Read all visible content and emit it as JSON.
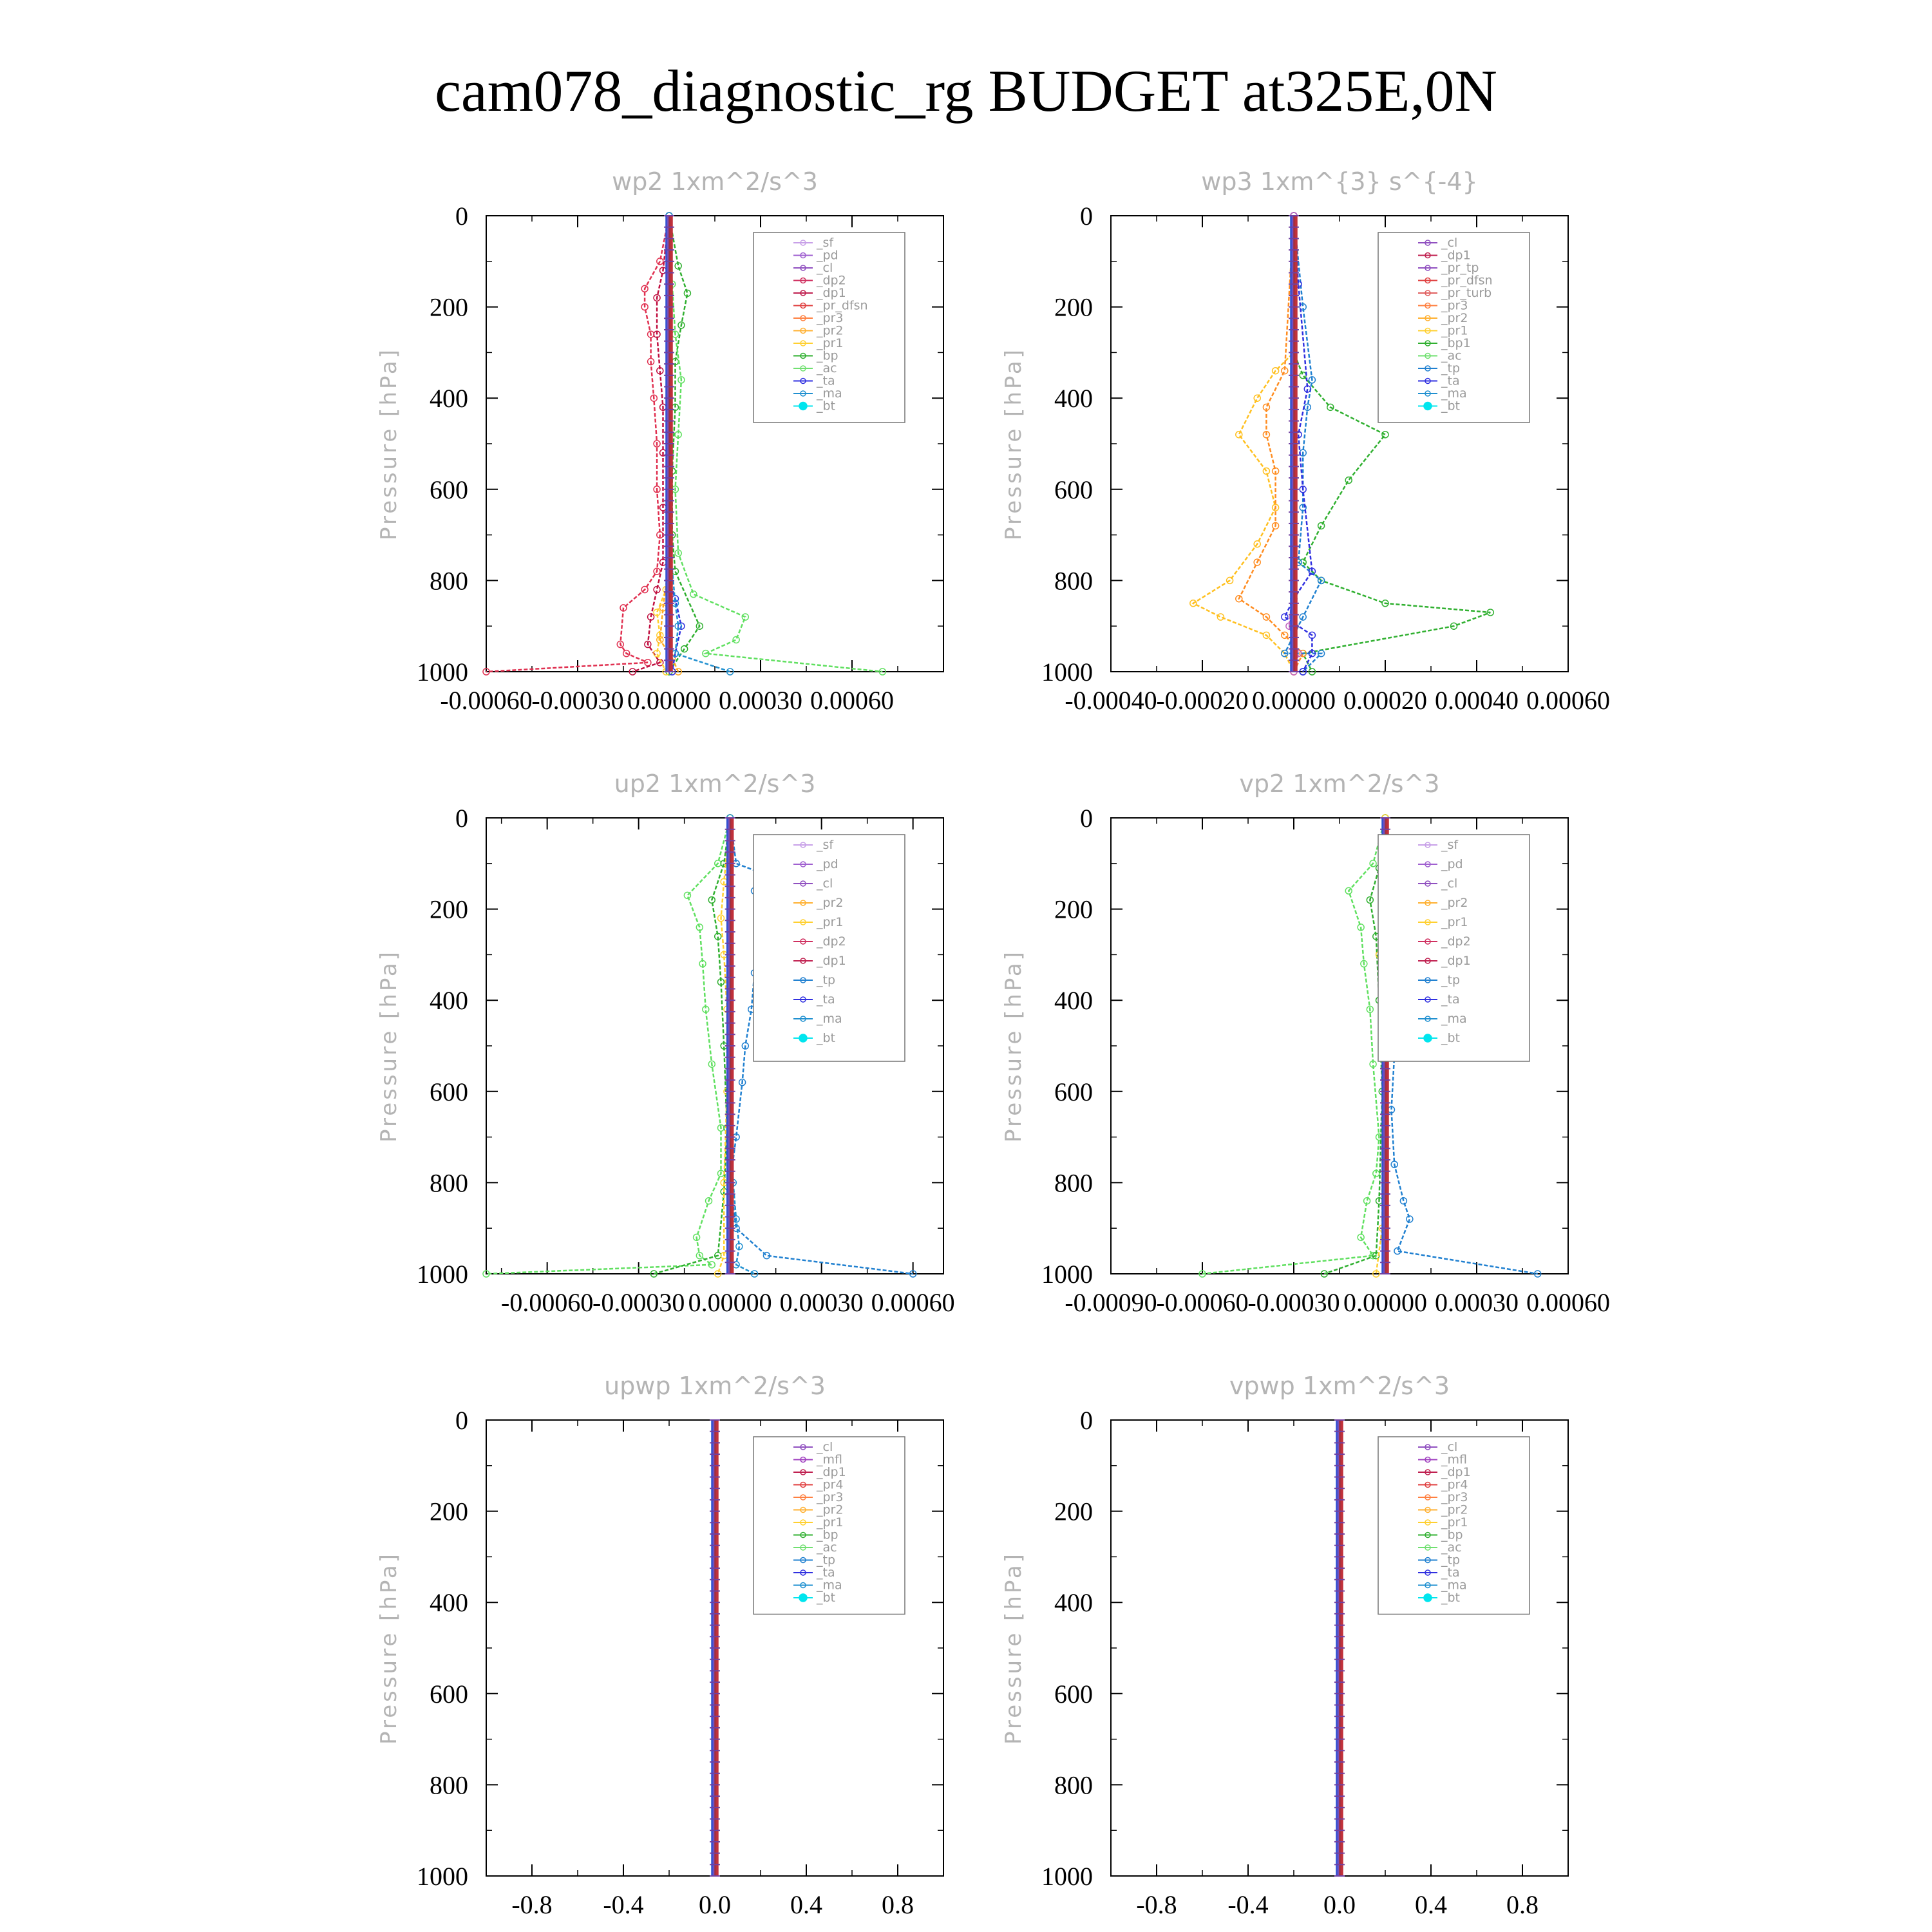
{
  "figure_title": "cam078_diagnostic_rg  BUDGET at325E,0N",
  "y_axis_label": "Pressure [hPa]",
  "chart_data": [
    {
      "type": "line",
      "title": "wp2   1xm^2/s^3",
      "ylabel": "Pressure [hPa]",
      "ylim": [
        1000,
        0
      ],
      "xlim": [
        -0.0006,
        0.0009
      ],
      "y_ticks": [
        "0",
        "200",
        "400",
        "600",
        "800",
        "1000"
      ],
      "x_ticks": [
        "-0.00060",
        "-0.00030",
        "0.00000",
        "0.00030",
        "0.00060"
      ],
      "x_tick_values": [
        -0.0006,
        -0.0003,
        0.0,
        0.0003,
        0.0006
      ],
      "legend": [
        "_sf",
        "_pd",
        "_cl",
        "_dp2",
        "_dp1",
        "_pr_dfsn",
        "_pr3",
        "_pr2",
        "_pr1",
        "_bp",
        "_ac",
        "_ta",
        "_ma",
        "_bt"
      ],
      "series": [
        {
          "name": "_dp2",
          "color": "#e03050",
          "x": [
            0,
            -3e-05,
            -8e-05,
            -8e-05,
            -6e-05,
            -6e-05,
            -5e-05,
            -4e-05,
            -4e-05,
            -3e-05,
            -4e-05,
            -8e-05,
            -0.00015,
            -0.00016,
            -0.00014,
            -7e-05,
            -0.0006
          ],
          "y": [
            0,
            100,
            160,
            200,
            260,
            320,
            400,
            500,
            600,
            700,
            780,
            820,
            860,
            940,
            960,
            980,
            1000
          ]
        },
        {
          "name": "_dp1",
          "color": "#c01040",
          "x": [
            0,
            -2e-05,
            -4e-05,
            -4e-05,
            -3e-05,
            -2e-05,
            -2e-05,
            -2e-05,
            -2e-05,
            -4e-05,
            -6e-05,
            -7e-05,
            -3e-05,
            -0.00012
          ],
          "y": [
            0,
            120,
            180,
            260,
            340,
            420,
            520,
            640,
            760,
            820,
            880,
            940,
            980,
            1000
          ]
        },
        {
          "name": "_bp",
          "color": "#30b030",
          "x": [
            0,
            3e-05,
            6e-05,
            4e-05,
            2e-05,
            2e-05,
            1e-05,
            1e-05,
            2e-05,
            0.0001,
            5e-05,
            0.0
          ],
          "y": [
            0,
            110,
            170,
            240,
            320,
            420,
            560,
            700,
            780,
            900,
            950,
            1000
          ]
        },
        {
          "name": "_ac",
          "color": "#60e060",
          "x": [
            0,
            1e-05,
            2e-05,
            4e-05,
            3e-05,
            2e-05,
            3e-05,
            8e-05,
            0.00025,
            0.00022,
            0.00012,
            0.0007
          ],
          "y": [
            0,
            150,
            260,
            360,
            480,
            600,
            740,
            830,
            880,
            930,
            960,
            1000
          ]
        },
        {
          "name": "_pr2",
          "color": "#ffd030",
          "x": [
            0,
            0,
            0,
            -1e-05,
            -4e-05,
            -3e-05,
            -4e-05,
            -1e-05
          ],
          "y": [
            0,
            400,
            700,
            820,
            870,
            920,
            960,
            1000
          ]
        },
        {
          "name": "_pr1",
          "color": "#ffaa20",
          "x": [
            0,
            0,
            0,
            -2e-05,
            -3e-05,
            1e-05,
            3e-05
          ],
          "y": [
            0,
            400,
            760,
            860,
            930,
            970,
            1000
          ]
        },
        {
          "name": "_ta",
          "color": "#3030e0",
          "x": [
            0,
            0,
            0,
            2e-05,
            4e-05,
            2e-05,
            1e-05
          ],
          "y": [
            0,
            400,
            800,
            840,
            900,
            960,
            1000
          ]
        },
        {
          "name": "_ma",
          "color": "#2090d0",
          "x": [
            0,
            0,
            2e-05,
            3e-05,
            2e-05,
            0.0002
          ],
          "y": [
            0,
            700,
            850,
            900,
            960,
            1000
          ]
        }
      ]
    },
    {
      "type": "line",
      "title": "wp3   1xm^{3} s^{-4}",
      "ylabel": "Pressure [hPa]",
      "ylim": [
        1000,
        0
      ],
      "xlim": [
        -0.0004,
        0.0006
      ],
      "y_ticks": [
        "0",
        "200",
        "400",
        "600",
        "800",
        "1000"
      ],
      "x_ticks": [
        "-0.00040",
        "-0.00020",
        "0.00000",
        "0.00020",
        "0.00040",
        "0.00060"
      ],
      "x_tick_values": [
        -0.0004,
        -0.0002,
        0.0,
        0.0002,
        0.0004,
        0.0006
      ],
      "legend": [
        "_cl",
        "_dp1",
        "_pr_tp",
        "_pr_dfsn",
        "_pr_turb",
        "_pr3",
        "_pr2",
        "_pr1",
        "_bp1",
        "_ac",
        "_tp",
        "_ta",
        "_ma",
        "_bt"
      ],
      "series": [
        {
          "name": "_bp1",
          "color": "#30b030",
          "x": [
            0,
            0,
            2e-05,
            8e-05,
            0.0002,
            0.00012,
            6e-05,
            2e-05,
            6e-05,
            0.0002,
            0.00043,
            0.00035,
            2e-05,
            4e-05
          ],
          "y": [
            0,
            300,
            350,
            420,
            480,
            580,
            680,
            760,
            800,
            850,
            870,
            900,
            960,
            1000
          ]
        },
        {
          "name": "_pr2",
          "color": "#ffc020",
          "x": [
            0,
            0,
            -4e-05,
            -8e-05,
            -0.00012,
            -6e-05,
            -4e-05,
            -8e-05,
            -0.00014,
            -0.00022,
            -0.00016,
            -6e-05,
            -2e-05,
            0.0
          ],
          "y": [
            0,
            300,
            340,
            400,
            480,
            560,
            640,
            720,
            800,
            850,
            880,
            920,
            960,
            1000
          ]
        },
        {
          "name": "_pr1",
          "color": "#ff8c20",
          "x": [
            0,
            -2e-05,
            -6e-05,
            -6e-05,
            -4e-05,
            -4e-05,
            -8e-05,
            -0.00012,
            -6e-05,
            -2e-05,
            2e-05,
            0.0
          ],
          "y": [
            0,
            340,
            420,
            480,
            560,
            680,
            760,
            840,
            880,
            920,
            960,
            1000
          ]
        },
        {
          "name": "_tp",
          "color": "#2080d0",
          "x": [
            0,
            2e-05,
            4e-05,
            3e-05,
            2e-05,
            2e-05,
            1e-05,
            6e-05,
            2e-05,
            -2e-05,
            6e-05,
            2e-05
          ],
          "y": [
            0,
            200,
            360,
            420,
            520,
            640,
            760,
            800,
            880,
            960,
            960,
            1000
          ]
        },
        {
          "name": "_ta",
          "color": "#3030e0",
          "x": [
            0,
            1e-05,
            3e-05,
            1e-05,
            2e-05,
            4e-05,
            0.0,
            -2e-05,
            4e-05,
            4e-05,
            2e-05
          ],
          "y": [
            0,
            150,
            380,
            480,
            600,
            780,
            840,
            880,
            920,
            960,
            1000
          ]
        },
        {
          "name": "_dp1",
          "color": "#c060c0",
          "x": [
            0,
            0,
            -1e-05,
            1e-05,
            0.0
          ],
          "y": [
            0,
            800,
            900,
            960,
            1000
          ]
        }
      ]
    },
    {
      "type": "line",
      "title": "up2   1xm^2/s^3",
      "ylabel": "Pressure [hPa]",
      "ylim": [
        1000,
        0
      ],
      "xlim": [
        -0.0008,
        0.0007
      ],
      "y_ticks": [
        "0",
        "200",
        "400",
        "600",
        "800",
        "1000"
      ],
      "x_ticks": [
        "-0.00060",
        "-0.00030",
        "0.00000",
        "0.00030",
        "0.00060"
      ],
      "x_tick_values": [
        -0.0006,
        -0.0003,
        0.0,
        0.0003,
        0.0006
      ],
      "legend": [
        "_sf",
        "_pd",
        "_cl",
        "_pr2",
        "_pr1",
        "_dp2",
        "_dp1",
        "_tp",
        "_ta",
        "_ma",
        "_bt"
      ],
      "series": [
        {
          "name": "_tp",
          "color": "#2080d0",
          "x": [
            0,
            2e-05,
            0.0001,
            8e-05,
            0.00015,
            0.0001,
            8e-05,
            7e-05,
            5e-05,
            4e-05,
            2e-05,
            0.0,
            2e-05,
            0.00012,
            0.0006
          ],
          "y": [
            0,
            100,
            120,
            160,
            200,
            260,
            340,
            420,
            500,
            580,
            700,
            800,
            900,
            960,
            1000
          ]
        },
        {
          "name": "_dp1",
          "color": "#60e060",
          "x": [
            0,
            -4e-05,
            -0.00014,
            -0.0001,
            -9e-05,
            -8e-05,
            -6e-05,
            -3e-05,
            -3e-05,
            -7e-05,
            -0.00011,
            -0.0001,
            -6e-05,
            -0.0008
          ],
          "y": [
            0,
            100,
            170,
            240,
            320,
            420,
            540,
            680,
            780,
            840,
            920,
            960,
            980,
            1000
          ]
        },
        {
          "name": "_dp2",
          "color": "#30b030",
          "x": [
            0,
            -2e-05,
            -6e-05,
            -4e-05,
            -3e-05,
            -2e-05,
            -1e-05,
            -2e-05,
            -4e-05,
            -0.00025
          ],
          "y": [
            0,
            100,
            180,
            260,
            360,
            500,
            680,
            820,
            960,
            1000
          ]
        },
        {
          "name": "_pr1",
          "color": "#ffd030",
          "x": [
            0,
            -2e-05,
            -3e-05,
            -2e-05,
            -1e-05,
            -1e-05,
            -2e-05,
            -2e-05,
            -4e-05
          ],
          "y": [
            0,
            140,
            220,
            300,
            420,
            600,
            800,
            960,
            1000
          ]
        },
        {
          "name": "_ma",
          "color": "#2090d0",
          "x": [
            0,
            0,
            1e-05,
            2e-05,
            3e-05,
            2e-05,
            8e-05
          ],
          "y": [
            0,
            500,
            800,
            880,
            940,
            980,
            1000
          ]
        }
      ]
    },
    {
      "type": "line",
      "title": "vp2   1xm^2/s^3",
      "ylabel": "Pressure [hPa]",
      "ylim": [
        1000,
        0
      ],
      "xlim": [
        -0.0009,
        0.0006
      ],
      "y_ticks": [
        "0",
        "200",
        "400",
        "600",
        "800",
        "1000"
      ],
      "x_ticks": [
        "-0.00090",
        "-0.00060",
        "-0.00030",
        "0.00000",
        "0.00030",
        "0.00060"
      ],
      "x_tick_values": [
        -0.0009,
        -0.0006,
        -0.0003,
        0.0,
        0.0003,
        0.0006
      ],
      "legend": [
        "_sf",
        "_pd",
        "_cl",
        "_pr2",
        "_pr1",
        "_dp2",
        "_dp1",
        "_tp",
        "_ta",
        "_ma",
        "_bt"
      ],
      "series": [
        {
          "name": "_tp",
          "color": "#2080d0",
          "x": [
            0,
            2e-05,
            0.00012,
            8e-05,
            0.00017,
            0.0001,
            6e-05,
            4e-05,
            3e-05,
            2e-05,
            3e-05,
            6e-05,
            8e-05,
            4e-05,
            0.0005
          ],
          "y": [
            0,
            100,
            130,
            160,
            180,
            240,
            340,
            420,
            520,
            640,
            760,
            840,
            880,
            950,
            1000
          ]
        },
        {
          "name": "_dp1",
          "color": "#60e060",
          "x": [
            0,
            -4e-05,
            -0.00012,
            -8e-05,
            -7e-05,
            -5e-05,
            -4e-05,
            -2e-05,
            -3e-05,
            -6e-05,
            -8e-05,
            -4e-05,
            -0.0006
          ],
          "y": [
            0,
            100,
            160,
            240,
            320,
            420,
            540,
            700,
            780,
            840,
            920,
            960,
            1000
          ]
        },
        {
          "name": "_dp2",
          "color": "#30b030",
          "x": [
            0,
            -2e-05,
            -5e-05,
            -3e-05,
            -2e-05,
            -1e-05,
            -2e-05,
            -3e-05,
            -0.0002
          ],
          "y": [
            0,
            110,
            180,
            260,
            400,
            600,
            840,
            960,
            1000
          ]
        },
        {
          "name": "_pr1",
          "color": "#ffd030",
          "x": [
            0,
            -1e-05,
            -2e-05,
            -1e-05,
            -1e-05,
            -3e-05
          ],
          "y": [
            0,
            200,
            300,
            500,
            900,
            1000
          ]
        }
      ]
    },
    {
      "type": "line",
      "title": "upwp   1xm^2/s^3",
      "ylabel": "Pressure [hPa]",
      "ylim": [
        1000,
        0
      ],
      "xlim": [
        -1.0,
        1.0
      ],
      "y_ticks": [
        "0",
        "200",
        "400",
        "600",
        "800",
        "1000"
      ],
      "x_ticks": [
        "-0.8",
        "-0.4",
        "0.0",
        "0.4",
        "0.8"
      ],
      "x_tick_values": [
        -0.8,
        -0.4,
        0.0,
        0.4,
        0.8
      ],
      "legend": [
        "_cl",
        "_mfl",
        "_dp1",
        "_pr4",
        "_pr3",
        "_pr2",
        "_pr1",
        "_bp",
        "_ac",
        "_tp",
        "_ta",
        "_ma",
        "_bt"
      ],
      "series": []
    },
    {
      "type": "line",
      "title": "vpwp   1xm^2/s^3",
      "ylabel": "Pressure [hPa]",
      "ylim": [
        1000,
        0
      ],
      "xlim": [
        -1.0,
        1.0
      ],
      "y_ticks": [
        "0",
        "200",
        "400",
        "600",
        "800",
        "1000"
      ],
      "x_ticks": [
        "-0.8",
        "-0.4",
        "0.0",
        "0.4",
        "0.8"
      ],
      "x_tick_values": [
        -0.8,
        -0.4,
        0.0,
        0.4,
        0.8
      ],
      "legend": [
        "_cl",
        "_mfl",
        "_dp1",
        "_pr4",
        "_pr3",
        "_pr2",
        "_pr1",
        "_bp",
        "_ac",
        "_tp",
        "_ta",
        "_ma",
        "_bt"
      ],
      "series": []
    }
  ],
  "legend_colors": {
    "_sf": "#c8a0e8",
    "_pd": "#a060d0",
    "_cl": "#9050c0",
    "_mfl": "#a040c0",
    "_dp2": "#d03060",
    "_dp1": "#c02050",
    "_pr_dfsn": "#e04040",
    "_pr_tp": "#9050c0",
    "_pr_turb": "#e06060",
    "_pr4": "#e04040",
    "_pr3": "#ff8040",
    "_pr2": "#ffb030",
    "_pr1": "#ffd030",
    "_bp": "#30b030",
    "_bp1": "#30b030",
    "_ac": "#70e070",
    "_tp": "#2080d0",
    "_ta": "#3030e0",
    "_ma": "#2090d0",
    "_bt": "#00e5ee"
  }
}
